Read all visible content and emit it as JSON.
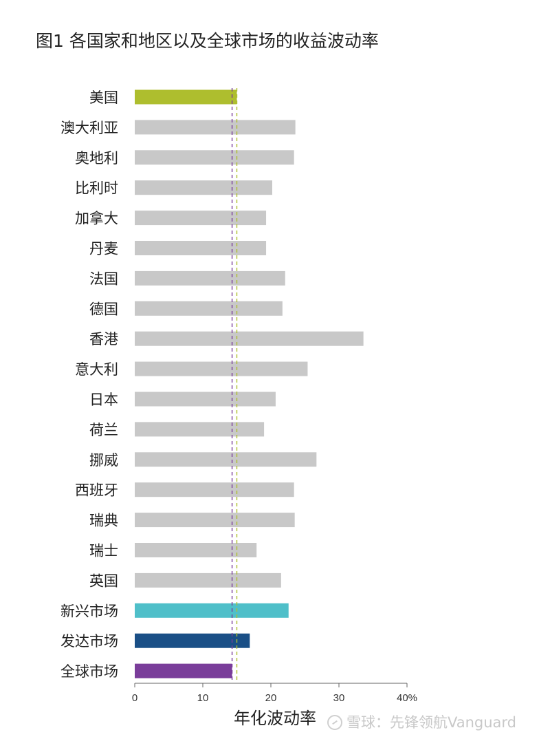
{
  "chart_data": {
    "type": "bar",
    "orientation": "horizontal",
    "title": "图1 各国家和地区以及全球市场的收益波动率",
    "xlabel": "年化波动率",
    "xlim": [
      0,
      40
    ],
    "ticks": [
      0,
      10,
      20,
      30,
      40
    ],
    "tick_labels": [
      "0",
      "10",
      "20",
      "30",
      "40%"
    ],
    "categories": [
      "美国",
      "澳大利亚",
      "奥地利",
      "比利时",
      "加拿大",
      "丹麦",
      "法国",
      "德国",
      "香港",
      "意大利",
      "日本",
      "荷兰",
      "挪威",
      "西班牙",
      "瑞典",
      "瑞士",
      "英国",
      "新兴市场",
      "发达市场",
      "全球市场"
    ],
    "values": [
      15.0,
      23.6,
      23.4,
      20.2,
      19.3,
      19.3,
      22.1,
      21.7,
      33.6,
      25.4,
      20.7,
      19.0,
      26.7,
      23.4,
      23.5,
      17.9,
      21.5,
      22.6,
      16.9,
      14.3
    ],
    "colors": [
      "#aebe2e",
      "#c8c8c8",
      "#c8c8c8",
      "#c8c8c8",
      "#c8c8c8",
      "#c8c8c8",
      "#c8c8c8",
      "#c8c8c8",
      "#c8c8c8",
      "#c8c8c8",
      "#c8c8c8",
      "#c8c8c8",
      "#c8c8c8",
      "#c8c8c8",
      "#c8c8c8",
      "#c8c8c8",
      "#c8c8c8",
      "#4fbfc9",
      "#1a4f86",
      "#7a3d9a"
    ],
    "reference_lines": [
      {
        "value": 14.3,
        "color": "#7a3d9a",
        "style": "dashed"
      },
      {
        "value": 15.0,
        "color": "#aebe2e",
        "style": "dashed"
      }
    ],
    "grid": false
  },
  "watermark": {
    "text": "雪球：先锋领航Vanguard"
  }
}
